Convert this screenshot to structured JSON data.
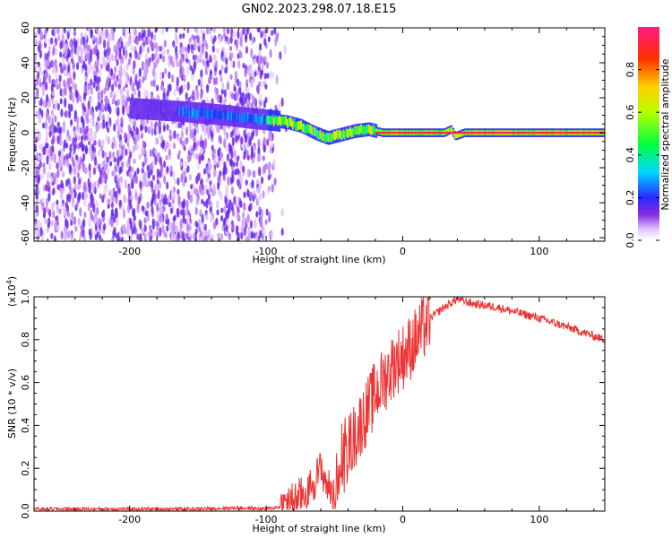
{
  "title": "GN02.2023.298.07.18.E15",
  "chart_data": [
    {
      "type": "heatmap",
      "xlabel": "Height of straight line (km)",
      "ylabel": "Frequency (Hz)",
      "xlim": [
        -270,
        148
      ],
      "ylim": [
        -62,
        60
      ],
      "xticks": [
        -200,
        -100,
        0,
        100
      ],
      "yticks": [
        -60,
        -40,
        -20,
        0,
        20,
        40,
        60
      ],
      "colorbar": {
        "label": "Normalized spectral amplitude",
        "ticks": [
          0.0,
          0.2,
          0.4,
          0.6,
          0.8
        ],
        "range": [
          0,
          1
        ]
      },
      "ridge": {
        "description_points_x": [
          -270,
          -200,
          -160,
          -130,
          -110,
          -95,
          -85,
          -75,
          -65,
          -55,
          -45,
          -35,
          -25,
          -15,
          0,
          30,
          35,
          38,
          45,
          100,
          148
        ],
        "description_points_y": [
          14,
          14,
          12,
          10,
          8,
          7,
          6,
          4,
          0,
          -3,
          -1,
          1,
          2,
          0,
          0,
          0,
          2,
          -2,
          0,
          0,
          0
        ]
      }
    },
    {
      "type": "line",
      "xlabel": "Height of straight line (km)",
      "ylabel": "SNR (10 * v/v)",
      "yscale_note": "(x10",
      "yscale_exp": "4",
      "xlim": [
        -270,
        148
      ],
      "ylim": [
        0,
        1.0
      ],
      "xticks": [
        -200,
        -100,
        0,
        100
      ],
      "yticks": [
        0.0,
        0.2,
        0.4,
        0.6,
        0.8,
        1.0
      ],
      "series": [
        {
          "color": "#ee3333",
          "x": [
            -270,
            -200,
            -150,
            -120,
            -100,
            -90,
            -80,
            -70,
            -65,
            -60,
            -55,
            -50,
            -45,
            -40,
            -35,
            -30,
            -25,
            -20,
            -15,
            -10,
            -5,
            0,
            10,
            20,
            30,
            40,
            50,
            70,
            100,
            120,
            148
          ],
          "y": [
            0.01,
            0.01,
            0.01,
            0.015,
            0.01,
            0.02,
            0.05,
            0.09,
            0.14,
            0.2,
            0.12,
            0.06,
            0.2,
            0.3,
            0.35,
            0.42,
            0.48,
            0.55,
            0.6,
            0.65,
            0.7,
            0.72,
            0.8,
            0.9,
            0.95,
            0.99,
            0.97,
            0.95,
            0.9,
            0.86,
            0.8
          ]
        }
      ]
    }
  ],
  "colors": {
    "line": "#ee3333",
    "heat_purple": "#7a1fe8",
    "heat_light": "#d9c2ff"
  }
}
